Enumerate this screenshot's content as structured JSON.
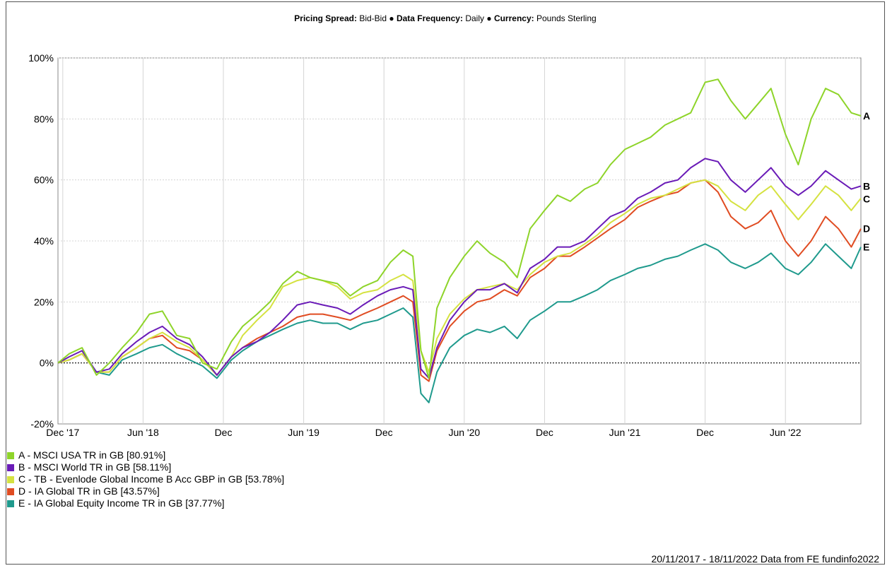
{
  "header": {
    "k1": "Pricing Spread:",
    "v1": "Bid-Bid",
    "sep": "●",
    "k2": "Data Frequency:",
    "v2": "Daily",
    "k3": "Currency:",
    "v3": "Pounds Sterling"
  },
  "footer": {
    "text": "20/11/2017 - 18/11/2022 Data from FE fundinfo2022"
  },
  "chart_data": {
    "type": "line",
    "title": "",
    "xlabel": "",
    "ylabel": "",
    "ylim": [
      -20,
      100
    ],
    "xlim": [
      2017.89,
      2022.89
    ],
    "y_ticks": [
      {
        "value": -20,
        "label": "-20%"
      },
      {
        "value": 0,
        "label": "0%"
      },
      {
        "value": 20,
        "label": "20%"
      },
      {
        "value": 40,
        "label": "40%"
      },
      {
        "value": 60,
        "label": "60%"
      },
      {
        "value": 80,
        "label": "80%"
      },
      {
        "value": 100,
        "label": "100%"
      }
    ],
    "x_ticks": [
      {
        "value": 2017.92,
        "label": "Dec '17"
      },
      {
        "value": 2018.42,
        "label": "Jun '18"
      },
      {
        "value": 2018.92,
        "label": "Dec"
      },
      {
        "value": 2019.42,
        "label": "Jun '19"
      },
      {
        "value": 2019.92,
        "label": "Dec"
      },
      {
        "value": 2020.42,
        "label": "Jun '20"
      },
      {
        "value": 2020.92,
        "label": "Dec"
      },
      {
        "value": 2021.42,
        "label": "Jun '21"
      },
      {
        "value": 2021.92,
        "label": "Dec"
      },
      {
        "value": 2022.42,
        "label": "Jun '22"
      }
    ],
    "grid": true,
    "legend_position": "bottom-left",
    "x": [
      2017.89,
      2017.96,
      2018.04,
      2018.13,
      2018.21,
      2018.29,
      2018.38,
      2018.46,
      2018.54,
      2018.63,
      2018.71,
      2018.79,
      2018.88,
      2018.97,
      2019.04,
      2019.13,
      2019.21,
      2019.29,
      2019.38,
      2019.46,
      2019.54,
      2019.63,
      2019.71,
      2019.79,
      2019.88,
      2019.96,
      2020.04,
      2020.1,
      2020.15,
      2020.2,
      2020.25,
      2020.33,
      2020.42,
      2020.5,
      2020.58,
      2020.67,
      2020.75,
      2020.83,
      2020.92,
      2021.0,
      2021.08,
      2021.17,
      2021.25,
      2021.33,
      2021.42,
      2021.5,
      2021.58,
      2021.67,
      2021.75,
      2021.83,
      2021.92,
      2022.0,
      2022.08,
      2022.17,
      2022.25,
      2022.33,
      2022.42,
      2022.5,
      2022.58,
      2022.67,
      2022.75,
      2022.83,
      2022.89
    ],
    "series": [
      {
        "name": "A - MSCI USA TR in GB [80.91%]",
        "label": "A",
        "color": "#8ed42a",
        "values": [
          0,
          3,
          5,
          -4,
          0,
          5,
          10,
          16,
          17,
          9,
          8,
          0,
          -2,
          7,
          12,
          16,
          20,
          26,
          30,
          28,
          27,
          26,
          22,
          25,
          27,
          33,
          37,
          35,
          4,
          -5,
          18,
          28,
          35,
          40,
          36,
          33,
          28,
          44,
          50,
          55,
          53,
          57,
          59,
          65,
          70,
          72,
          74,
          78,
          80,
          82,
          92,
          93,
          86,
          80,
          85,
          90,
          75,
          65,
          80,
          90,
          88,
          82,
          81
        ]
      },
      {
        "name": "B - MSCI World TR in GB [58.11%]",
        "label": "B",
        "color": "#6a1bb7",
        "values": [
          0,
          2,
          4,
          -3,
          -2,
          3,
          7,
          10,
          12,
          8,
          6,
          2,
          -4,
          2,
          5,
          7,
          10,
          14,
          19,
          20,
          19,
          18,
          16,
          19,
          22,
          24,
          25,
          24,
          -2,
          -5,
          5,
          14,
          20,
          24,
          24,
          26,
          23,
          31,
          34,
          38,
          38,
          40,
          44,
          48,
          50,
          54,
          56,
          59,
          60,
          64,
          67,
          66,
          60,
          56,
          60,
          64,
          58,
          55,
          58,
          63,
          60,
          57,
          58
        ]
      },
      {
        "name": "C - TB - Evenlode Global Income B Acc GBP in GB [53.78%]",
        "label": "C",
        "color": "#d5e241",
        "values": [
          0,
          1,
          3,
          -3,
          -3,
          2,
          5,
          8,
          10,
          7,
          5,
          1,
          -4,
          2,
          9,
          14,
          18,
          25,
          27,
          28,
          27,
          25,
          21,
          23,
          24,
          27,
          29,
          27,
          4,
          -3,
          8,
          16,
          21,
          24,
          25,
          26,
          24,
          29,
          33,
          35,
          36,
          39,
          42,
          46,
          49,
          52,
          54,
          55,
          57,
          59,
          60,
          58,
          53,
          50,
          55,
          58,
          52,
          47,
          52,
          58,
          55,
          50,
          54
        ]
      },
      {
        "name": "D - IA Global TR in GB [43.57%]",
        "label": "D",
        "color": "#e04c22",
        "values": [
          0,
          1,
          3,
          -3,
          -3,
          2,
          5,
          8,
          9,
          5,
          4,
          1,
          -4,
          2,
          5,
          8,
          10,
          12,
          15,
          16,
          16,
          15,
          14,
          16,
          18,
          20,
          22,
          20,
          -4,
          -6,
          4,
          12,
          17,
          20,
          21,
          24,
          22,
          28,
          31,
          35,
          35,
          38,
          41,
          44,
          47,
          51,
          53,
          55,
          56,
          59,
          60,
          56,
          48,
          44,
          46,
          50,
          40,
          35,
          40,
          48,
          44,
          38,
          44
        ]
      },
      {
        "name": "E - IA Global Equity Income TR in GB [37.77%]",
        "label": "E",
        "color": "#1f9a8d",
        "values": [
          0,
          1,
          3,
          -3,
          -4,
          1,
          3,
          5,
          6,
          3,
          1,
          -1,
          -5,
          1,
          4,
          7,
          9,
          11,
          13,
          14,
          13,
          13,
          11,
          13,
          14,
          16,
          18,
          15,
          -10,
          -13,
          -3,
          5,
          9,
          11,
          10,
          12,
          8,
          14,
          17,
          20,
          20,
          22,
          24,
          27,
          29,
          31,
          32,
          34,
          35,
          37,
          39,
          37,
          33,
          31,
          33,
          36,
          31,
          29,
          33,
          39,
          35,
          31,
          38
        ]
      }
    ]
  }
}
